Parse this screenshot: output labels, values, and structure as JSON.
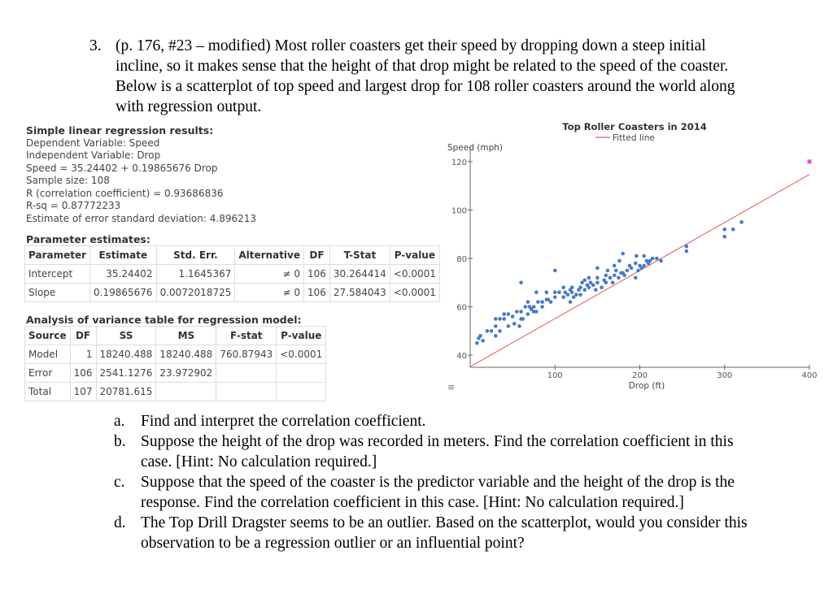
{
  "problem": {
    "number": "3.",
    "text": "(p. 176, #23 – modified) Most roller coasters get their speed by dropping down a steep initial incline, so it makes sense that the height of that drop might be related to the speed of the coaster. Below is a scatterplot of top speed and largest drop for 108 roller coasters around the world along with regression output."
  },
  "results": {
    "heading": "Simple linear regression results:",
    "lines": [
      "Dependent Variable: Speed",
      "Independent Variable: Drop",
      "Speed = 35.24402 + 0.19865676 Drop",
      "Sample size: 108",
      "R (correlation coefficient) = 0.93686836",
      "R-sq = 0.87772233",
      "Estimate of error standard deviation: 4.896213"
    ]
  },
  "param": {
    "title": "Parameter estimates:",
    "headers": [
      "Parameter",
      "Estimate",
      "Std. Err.",
      "Alternative",
      "DF",
      "T-Stat",
      "P-value"
    ],
    "rows": [
      [
        "Intercept",
        "35.24402",
        "1.1645367",
        "≠ 0",
        "106",
        "30.264414",
        "<0.0001"
      ],
      [
        "Slope",
        "0.19865676",
        "0.0072018725",
        "≠ 0",
        "106",
        "27.584043",
        "<0.0001"
      ]
    ]
  },
  "anova": {
    "title": "Analysis of variance table for regression model:",
    "headers": [
      "Source",
      "DF",
      "SS",
      "MS",
      "F-stat",
      "P-value"
    ],
    "rows": [
      [
        "Model",
        "1",
        "18240.488",
        "18240.488",
        "760.87943",
        "<0.0001"
      ],
      [
        "Error",
        "106",
        "2541.1276",
        "23.972902",
        "",
        ""
      ],
      [
        "Total",
        "107",
        "20781.615",
        "",
        "",
        ""
      ]
    ]
  },
  "chart_data": {
    "type": "scatter",
    "title": "Top Roller Coasters in 2014",
    "xlabel": "Drop (ft)",
    "ylabel": "Speed (mph)",
    "xlim": [
      0,
      400
    ],
    "ylim": [
      35,
      125
    ],
    "xticks": [
      100,
      200,
      300,
      400
    ],
    "yticks": [
      40,
      60,
      80,
      100,
      120
    ],
    "legend": "Fitted line",
    "legend_position": "top-right",
    "fit": {
      "intercept": 35.24402,
      "slope": 0.19865676
    },
    "colors": {
      "points": "#4a7bc4",
      "line": "#e05a5a",
      "highlight": "#e84be0"
    },
    "points": [
      [
        8,
        45
      ],
      [
        10,
        47
      ],
      [
        12,
        48
      ],
      [
        15,
        46
      ],
      [
        20,
        50
      ],
      [
        25,
        50
      ],
      [
        30,
        52
      ],
      [
        30,
        55
      ],
      [
        35,
        55
      ],
      [
        40,
        55
      ],
      [
        40,
        57
      ],
      [
        45,
        57
      ],
      [
        50,
        56
      ],
      [
        55,
        58
      ],
      [
        60,
        58
      ],
      [
        60,
        55
      ],
      [
        65,
        60
      ],
      [
        68,
        57
      ],
      [
        70,
        60
      ],
      [
        72,
        59
      ],
      [
        75,
        60
      ],
      [
        78,
        58
      ],
      [
        80,
        62
      ],
      [
        85,
        62
      ],
      [
        85,
        60
      ],
      [
        90,
        63
      ],
      [
        92,
        63
      ],
      [
        95,
        62
      ],
      [
        100,
        64
      ],
      [
        100,
        66
      ],
      [
        105,
        66
      ],
      [
        110,
        64
      ],
      [
        110,
        68
      ],
      [
        112,
        66
      ],
      [
        115,
        65
      ],
      [
        118,
        67
      ],
      [
        120,
        66
      ],
      [
        120,
        68
      ],
      [
        125,
        65
      ],
      [
        128,
        67
      ],
      [
        130,
        68
      ],
      [
        130,
        65
      ],
      [
        132,
        70
      ],
      [
        135,
        67
      ],
      [
        138,
        69
      ],
      [
        140,
        68
      ],
      [
        142,
        70
      ],
      [
        145,
        69
      ],
      [
        148,
        67
      ],
      [
        150,
        70
      ],
      [
        150,
        72
      ],
      [
        155,
        68
      ],
      [
        158,
        71
      ],
      [
        160,
        70
      ],
      [
        160,
        73
      ],
      [
        165,
        72
      ],
      [
        168,
        70
      ],
      [
        170,
        73
      ],
      [
        172,
        75
      ],
      [
        175,
        72
      ],
      [
        178,
        74
      ],
      [
        180,
        74
      ],
      [
        182,
        73
      ],
      [
        185,
        75
      ],
      [
        188,
        77
      ],
      [
        190,
        76
      ],
      [
        195,
        78
      ],
      [
        195,
        72
      ],
      [
        198,
        75
      ],
      [
        200,
        77
      ],
      [
        202,
        76
      ],
      [
        205,
        77
      ],
      [
        208,
        79
      ],
      [
        210,
        78
      ],
      [
        212,
        79
      ],
      [
        215,
        80
      ],
      [
        220,
        80
      ],
      [
        225,
        79
      ],
      [
        255,
        83
      ],
      [
        255,
        85
      ],
      [
        300,
        89
      ],
      [
        300,
        92
      ],
      [
        310,
        92
      ],
      [
        320,
        95
      ],
      [
        180,
        82
      ],
      [
        100,
        75
      ],
      [
        60,
        70
      ],
      [
        68,
        62
      ],
      [
        78,
        66
      ],
      [
        30,
        48
      ],
      [
        35,
        50
      ],
      [
        45,
        52
      ],
      [
        52,
        53
      ],
      [
        58,
        52
      ],
      [
        62,
        55
      ],
      [
        75,
        58
      ],
      [
        90,
        66
      ],
      [
        118,
        62
      ],
      [
        122,
        64
      ],
      [
        135,
        71
      ],
      [
        140,
        72
      ],
      [
        150,
        76
      ],
      [
        162,
        75
      ],
      [
        170,
        77
      ],
      [
        176,
        79
      ],
      [
        196,
        81
      ],
      [
        205,
        81
      ]
    ],
    "outlier": [
      400,
      120
    ]
  },
  "questions": [
    {
      "letter": "a.",
      "text": "Find and interpret the correlation coefficient."
    },
    {
      "letter": "b.",
      "text": "Suppose the height of the drop was recorded in meters. Find the correlation coefficient in this case. [Hint: No calculation required.]"
    },
    {
      "letter": "c.",
      "text": "Suppose that the speed of the coaster is the predictor variable and the height of the drop is the response. Find the correlation coefficient in this case. [Hint: No calculation required.]"
    },
    {
      "letter": "d.",
      "text": "The Top Drill Dragster seems to be an outlier. Based on the scatterplot, would you consider this observation to be a regression outlier or an influential point?"
    }
  ]
}
